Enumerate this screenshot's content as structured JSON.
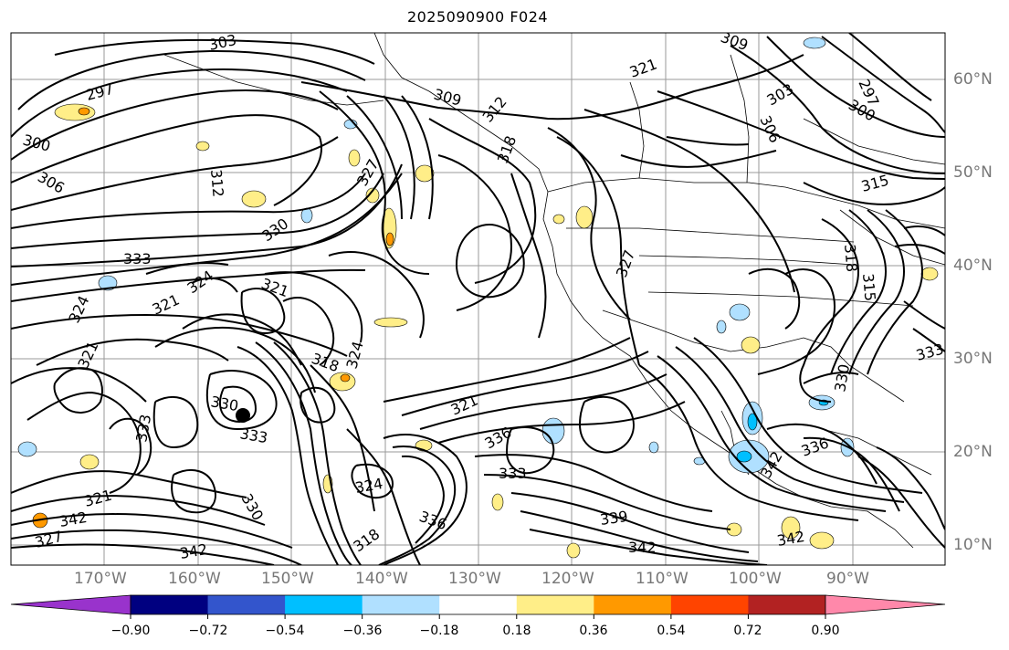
{
  "title": "2025090900 F024",
  "lat_labels": [
    "60°N",
    "50°N",
    "40°N",
    "30°N",
    "20°N",
    "10°N"
  ],
  "lon_labels": [
    "170°W",
    "160°W",
    "150°W",
    "140°W",
    "130°W",
    "120°W",
    "110°W",
    "100°W",
    "90°W"
  ],
  "colorbar": {
    "colors": [
      "#9933cc",
      "#000080",
      "#3355cc",
      "#00bfff",
      "#b0e0ff",
      "#ffffff",
      "#ffee88",
      "#ff9900",
      "#ff4400",
      "#b22222",
      "#ff88aa"
    ],
    "tick_labels": [
      "−0.90",
      "−0.72",
      "−0.54",
      "−0.36",
      "−0.18",
      "0.18",
      "0.36",
      "0.54",
      "0.72",
      "0.90"
    ]
  },
  "contour_labels": [
    "303",
    "309",
    "309",
    "297",
    "300",
    "306",
    "312",
    "312",
    "321",
    "303",
    "306",
    "297",
    "300",
    "315",
    "318",
    "333",
    "324",
    "321",
    "327",
    "330",
    "324",
    "321",
    "318",
    "321",
    "324",
    "330",
    "333",
    "333",
    "321",
    "336",
    "333",
    "339",
    "342",
    "342",
    "336",
    "342",
    "321",
    "342",
    "330",
    "324",
    "342",
    "318",
    "336",
    "315",
    "318",
    "327",
    "330",
    "327",
    "333"
  ]
}
